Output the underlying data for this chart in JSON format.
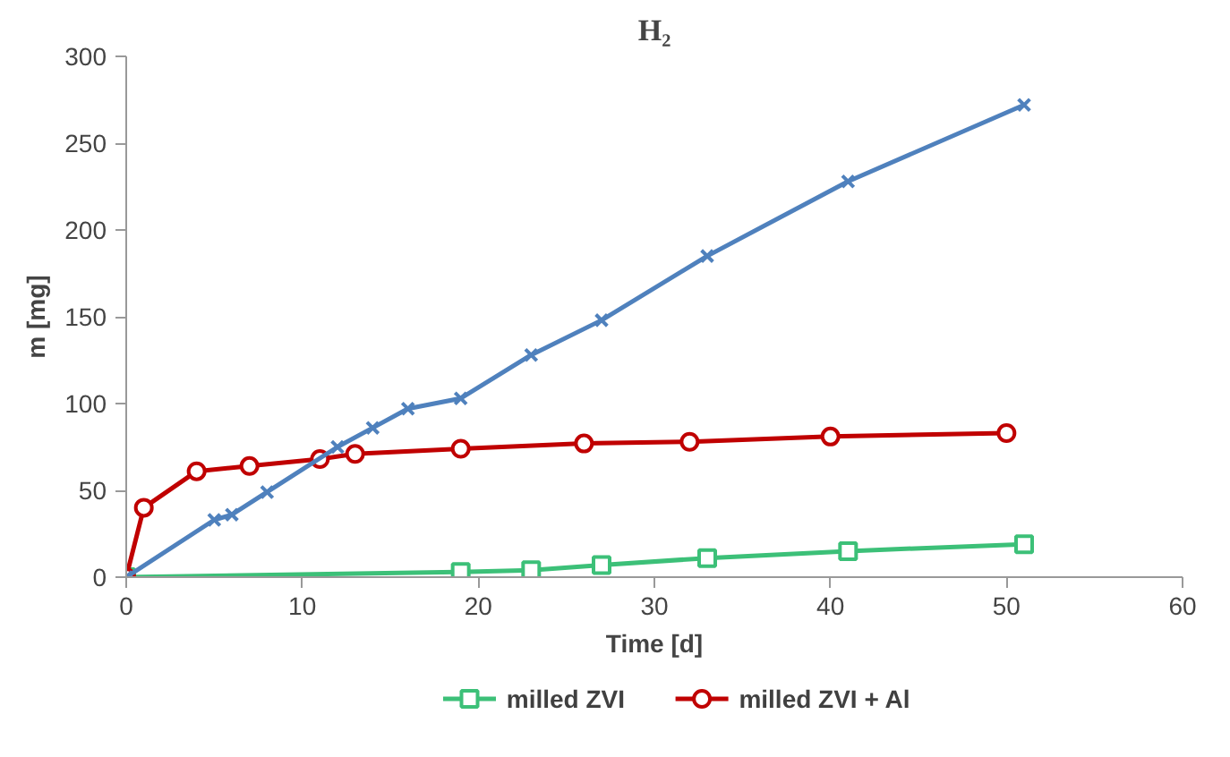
{
  "chart_data": {
    "type": "line",
    "title": "H₂",
    "xlabel": "Time [d]",
    "ylabel": "m [mg]",
    "xlim": [
      0,
      60
    ],
    "xticks": [
      0,
      10,
      20,
      30,
      40,
      50,
      60
    ],
    "ylim": [
      0,
      300
    ],
    "yticks": [
      0,
      50,
      100,
      150,
      200,
      250,
      300
    ],
    "grid": false,
    "legend": "bottom",
    "series": [
      {
        "name": "milled ZVI",
        "color": "#3cc078",
        "marker": "square",
        "x": [
          0,
          19,
          23,
          27,
          33,
          41,
          51
        ],
        "values": [
          0,
          3,
          4,
          7,
          11,
          15,
          19
        ]
      },
      {
        "name": "milled ZVI + Al",
        "color": "#c00000",
        "marker": "circle",
        "x": [
          0,
          1,
          4,
          7,
          11,
          13,
          19,
          26,
          32,
          40,
          50
        ],
        "values": [
          0,
          40,
          61,
          64,
          68,
          71,
          74,
          77,
          78,
          81,
          83
        ]
      },
      {
        "color": "#4f81bd",
        "marker": "cross",
        "x": [
          0,
          5,
          6,
          8,
          12,
          14,
          16,
          19,
          23,
          27,
          33,
          41,
          51
        ],
        "values": [
          0,
          33,
          36,
          49,
          75,
          86,
          97,
          103,
          128,
          148,
          185,
          228,
          272
        ]
      }
    ]
  }
}
